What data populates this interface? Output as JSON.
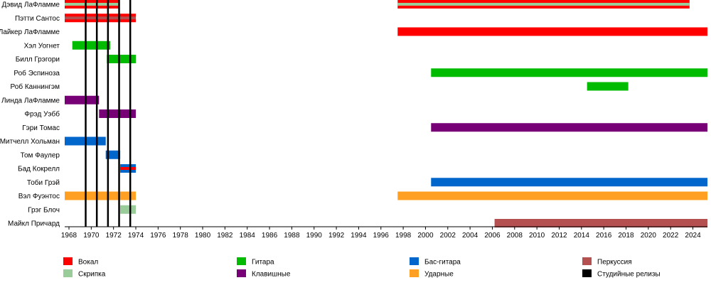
{
  "chart_data": {
    "type": "timeline",
    "title": "",
    "xlabel": "",
    "ylabel": "",
    "xlim": [
      1968,
      2025.8
    ],
    "x_ticks": [
      1968,
      1970,
      1972,
      1974,
      1976,
      1978,
      1980,
      1982,
      1984,
      1986,
      1988,
      1990,
      1992,
      1994,
      1996,
      1998,
      2000,
      2002,
      2004,
      2006,
      2008,
      2010,
      2012,
      2014,
      2016,
      2018,
      2020,
      2022,
      2024
    ],
    "grid": false,
    "legend_position": "bottom",
    "roles": [
      {
        "id": "vocals",
        "label": "Вокал",
        "color": "#ff0000"
      },
      {
        "id": "violin",
        "label": "Скрипка",
        "color": "#99cc99"
      },
      {
        "id": "guitar",
        "label": "Гитара",
        "color": "#00bb00"
      },
      {
        "id": "keys",
        "label": "Клавишные",
        "color": "#770077"
      },
      {
        "id": "bass",
        "label": "Бас-гитара",
        "color": "#0066cc"
      },
      {
        "id": "drums",
        "label": "Ударные",
        "color": "#ffa022"
      },
      {
        "id": "percussion",
        "label": "Перкуссия",
        "color": "#b55050"
      },
      {
        "id": "studio",
        "label": "Студийные релизы",
        "color": "#000000"
      }
    ],
    "members": [
      {
        "name": "Дэвид ЛаФламме",
        "bars": [
          {
            "role": "vocals",
            "start": 1967.5,
            "end": 1972.5,
            "secondary": "violin"
          },
          {
            "role": "vocals",
            "start": 1997.5,
            "end": 2023.7,
            "secondary": "violin"
          }
        ]
      },
      {
        "name": "Пэтти Сантос",
        "bars": [
          {
            "role": "vocals",
            "start": 1967.5,
            "end": 1974.0,
            "secondary": "percussion"
          }
        ]
      },
      {
        "name": "Лайкер ЛаФламме",
        "bars": [
          {
            "role": "vocals",
            "start": 1997.5,
            "end": 2025.8
          }
        ]
      },
      {
        "name": "Хэл Уогнет",
        "bars": [
          {
            "role": "guitar",
            "start": 1968.3,
            "end": 1971.7
          }
        ]
      },
      {
        "name": "Билл Грэгори",
        "bars": [
          {
            "role": "guitar",
            "start": 1971.4,
            "end": 1974.0
          }
        ]
      },
      {
        "name": "Роб Эспиноза",
        "bars": [
          {
            "role": "guitar",
            "start": 2000.5,
            "end": 2025.8
          }
        ]
      },
      {
        "name": "Роб Каннингэм",
        "bars": [
          {
            "role": "guitar",
            "start": 2014.5,
            "end": 2018.2
          }
        ]
      },
      {
        "name": "Линда ЛаФламме",
        "bars": [
          {
            "role": "keys",
            "start": 1967.5,
            "end": 1970.7
          }
        ]
      },
      {
        "name": "Фрэд Уэбб",
        "bars": [
          {
            "role": "keys",
            "start": 1970.7,
            "end": 1974.0
          }
        ]
      },
      {
        "name": "Гэри Томас",
        "bars": [
          {
            "role": "keys",
            "start": 2000.5,
            "end": 2025.8
          }
        ]
      },
      {
        "name": "Митчелл Хольман",
        "bars": [
          {
            "role": "bass",
            "start": 1967.5,
            "end": 1971.3
          }
        ]
      },
      {
        "name": "Том Фаулер",
        "bars": [
          {
            "role": "bass",
            "start": 1971.3,
            "end": 1972.6
          }
        ]
      },
      {
        "name": "Бад Кокрелл",
        "bars": [
          {
            "role": "bass",
            "start": 1972.6,
            "end": 1974.0,
            "secondary": "vocals"
          }
        ]
      },
      {
        "name": "Тоби Грэй",
        "bars": [
          {
            "role": "bass",
            "start": 2000.5,
            "end": 2025.8
          }
        ]
      },
      {
        "name": "Вэл Фуэнтос",
        "bars": [
          {
            "role": "drums",
            "start": 1967.5,
            "end": 1974.0
          },
          {
            "role": "drums",
            "start": 1997.5,
            "end": 2025.8
          }
        ]
      },
      {
        "name": "Грэг Блоч",
        "bars": [
          {
            "role": "violin",
            "start": 1972.6,
            "end": 1974.0
          }
        ]
      },
      {
        "name": "Майкл Причард",
        "bars": [
          {
            "role": "percussion",
            "start": 2006.2,
            "end": 2025.8
          }
        ]
      }
    ],
    "studio_releases": [
      1969.5,
      1970.5,
      1971.5,
      1972.5,
      1973.5
    ]
  }
}
